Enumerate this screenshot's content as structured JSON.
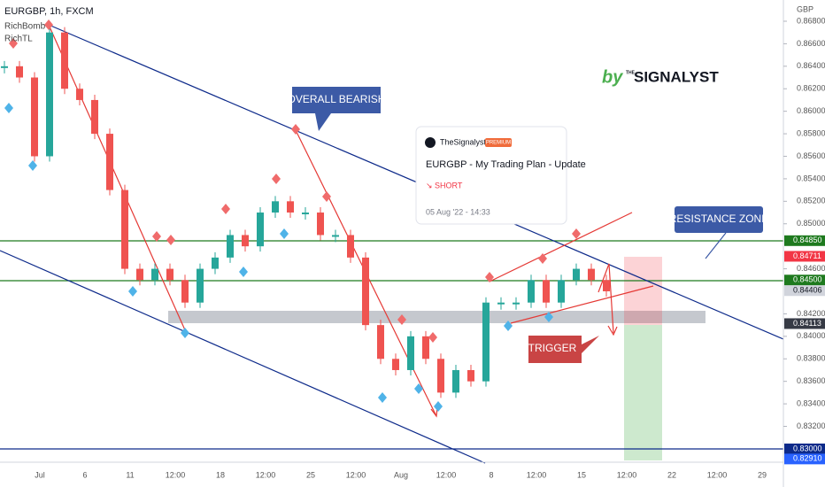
{
  "chart_data": {
    "type": "candlestick",
    "symbol": "EURGBP, 1h, FXCM",
    "indicators": [
      "RichBomb",
      "RichTL"
    ],
    "currency": "GBP",
    "close": [
      0.864,
      0.863,
      0.856,
      0.867,
      0.862,
      0.861,
      0.858,
      0.853,
      0.846,
      0.845,
      0.846,
      0.845,
      0.843,
      0.846,
      0.847,
      0.849,
      0.848,
      0.851,
      0.852,
      0.851,
      0.851,
      0.849,
      0.849,
      0.847,
      0.841,
      0.838,
      0.837,
      0.84,
      0.838,
      0.835,
      0.837,
      0.836,
      0.843,
      0.843,
      0.843,
      0.845,
      0.843,
      0.845,
      0.846,
      0.845,
      0.844
    ],
    "up_color": "#26a69a",
    "down_color": "#ef5350",
    "ylim": [
      0.8282,
      0.8698
    ],
    "yticks": [
      {
        "value": 0.868,
        "label": "0.86800"
      },
      {
        "value": 0.866,
        "label": "0.86600"
      },
      {
        "value": 0.864,
        "label": "0.86400"
      },
      {
        "value": 0.862,
        "label": "0.86200"
      },
      {
        "value": 0.86,
        "label": "0.86000"
      },
      {
        "value": 0.858,
        "label": "0.85800"
      },
      {
        "value": 0.856,
        "label": "0.85600"
      },
      {
        "value": 0.854,
        "label": "0.85400"
      },
      {
        "value": 0.852,
        "label": "0.85200"
      },
      {
        "value": 0.85,
        "label": "0.85000"
      },
      {
        "value": 0.846,
        "label": "0.84600"
      },
      {
        "value": 0.842,
        "label": "0.84200"
      },
      {
        "value": 0.84,
        "label": "0.84000"
      },
      {
        "value": 0.838,
        "label": "0.83800"
      },
      {
        "value": 0.836,
        "label": "0.83600"
      },
      {
        "value": 0.834,
        "label": "0.83400"
      },
      {
        "value": 0.832,
        "label": "0.83200"
      }
    ],
    "price_tags": [
      {
        "value": 0.8485,
        "label": "0.84850",
        "color": "#1e7a1e"
      },
      {
        "value": 0.84711,
        "label": "0.84711",
        "color": "#f23645"
      },
      {
        "value": 0.845,
        "label": "0.84500",
        "color": "#1e7a1e"
      },
      {
        "value": 0.84406,
        "label": "0.84406",
        "color": "#d1d4dc"
      },
      {
        "value": 0.84113,
        "label": "0.84113",
        "color": "#363a45"
      },
      {
        "value": 0.83,
        "label": "0.83000",
        "color": "#0d2a8a"
      },
      {
        "value": 0.8291,
        "label": "0.82910",
        "color": "#2962ff"
      }
    ],
    "x_labels": [
      "Jul",
      "6",
      "11",
      "12:00",
      "18",
      "12:00",
      "25",
      "12:00",
      "Aug",
      "12:00",
      "8",
      "12:00",
      "15",
      "12:00",
      "22",
      "12:00",
      "29"
    ],
    "annotations": {
      "bearish": "OVERALL BEARISH",
      "resistance": "RESISTANCE ZONE",
      "trigger": "TRIGGER"
    },
    "brand": {
      "by": "by",
      "name": "SIGNALYST",
      "prefix": "THE"
    },
    "idea": {
      "author": "TheSignalyst",
      "badge": "PREMIUM",
      "title": "EURGBP - My Trading Plan - Update",
      "direction": "↘ SHORT",
      "date": "05 Aug '22 - 14:33"
    }
  }
}
